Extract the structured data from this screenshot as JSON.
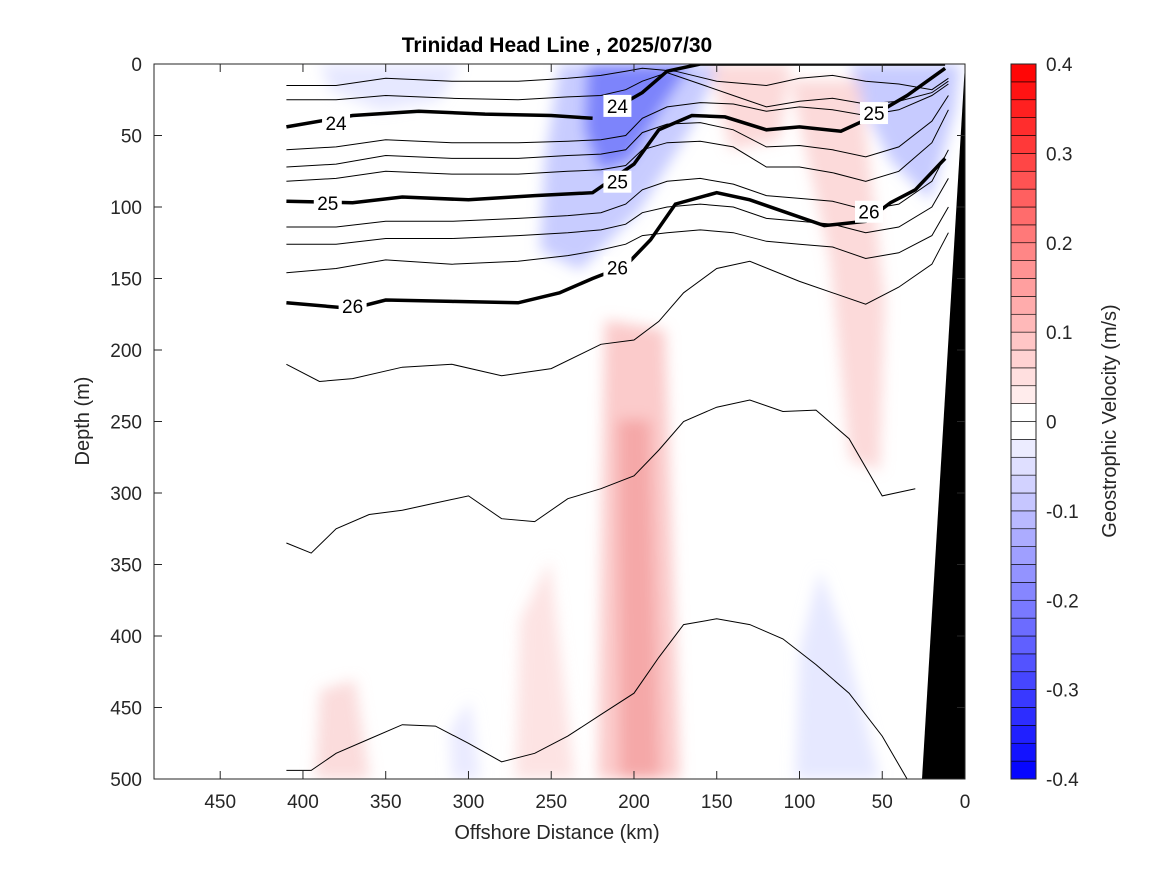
{
  "chart_data": {
    "type": "contour",
    "title": "Trinidad Head Line , 2025/07/30",
    "xlabel": "Offshore Distance (km)",
    "ylabel": "Depth (m)",
    "xlim": [
      490,
      0
    ],
    "ylim": [
      0,
      500
    ],
    "xticks": [
      "450",
      "400",
      "350",
      "300",
      "250",
      "200",
      "150",
      "100",
      "50",
      "0"
    ],
    "yticks": [
      "0",
      "50",
      "100",
      "150",
      "200",
      "250",
      "300",
      "350",
      "400",
      "450",
      "500"
    ],
    "colorbar": {
      "label": "Geostrophic Velocity (m/s)",
      "range": [
        -0.4,
        0.4
      ],
      "step": 0.02,
      "ticks": [
        "0.4",
        "0.3",
        "0.2",
        "0.1",
        "0",
        "-0.1",
        "-0.2",
        "-0.3",
        "-0.4"
      ],
      "positive_color": "#ff0000",
      "negative_color": "#0000ff"
    },
    "contour_labels": [
      {
        "text": "24",
        "x": 380,
        "y": 42
      },
      {
        "text": "24",
        "x": 210,
        "y": 30
      },
      {
        "text": "25",
        "x": 385,
        "y": 98
      },
      {
        "text": "25",
        "x": 210,
        "y": 83
      },
      {
        "text": "25",
        "x": 55,
        "y": 35
      },
      {
        "text": "26",
        "x": 370,
        "y": 170
      },
      {
        "text": "26",
        "x": 210,
        "y": 143
      },
      {
        "text": "26",
        "x": 58,
        "y": 104
      }
    ],
    "isopycnals_thick": [
      {
        "value": "24",
        "x": [
          410,
          370,
          330,
          290,
          250,
          225
        ],
        "y": [
          44,
          36,
          33,
          35,
          36,
          38
        ]
      },
      {
        "value": "24",
        "x": [
          210,
          195,
          180,
          160,
          130,
          100,
          80,
          55,
          35,
          12
        ],
        "y": [
          30,
          20,
          5,
          0,
          0,
          0,
          0,
          0,
          0,
          0
        ]
      },
      {
        "value": "25",
        "x": [
          410,
          370,
          340,
          300,
          260,
          225,
          200,
          185,
          165,
          145,
          120,
          100,
          75,
          60,
          35,
          12
        ],
        "y": [
          96,
          97,
          93,
          95,
          92,
          90,
          70,
          46,
          36,
          37,
          46,
          44,
          47,
          39,
          22,
          3
        ]
      },
      {
        "value": "26",
        "x": [
          410,
          370,
          350,
          310,
          270,
          245,
          225,
          205,
          190,
          175,
          150,
          130,
          110,
          85,
          60,
          45,
          30,
          12
        ],
        "y": [
          167,
          171,
          165,
          166,
          167,
          160,
          150,
          141,
          123,
          98,
          90,
          95,
          103,
          113,
          110,
          97,
          88,
          66
        ]
      }
    ],
    "isopycnals_thin": [
      {
        "x": [
          410,
          380,
          350,
          310,
          270,
          240,
          220,
          205,
          195,
          175,
          150,
          120,
          100,
          80,
          60,
          40,
          20,
          10
        ],
        "y": [
          15,
          15,
          10,
          12,
          12,
          10,
          8,
          5,
          3,
          5,
          12,
          15,
          10,
          8,
          12,
          14,
          18,
          10
        ]
      },
      {
        "x": [
          410,
          380,
          350,
          310,
          270,
          240,
          220,
          205,
          195,
          180,
          160,
          140,
          120,
          100,
          80,
          60,
          40,
          20,
          10
        ],
        "y": [
          25,
          25,
          22,
          24,
          25,
          23,
          22,
          18,
          12,
          6,
          14,
          22,
          30,
          26,
          24,
          28,
          26,
          20,
          12
        ]
      },
      {
        "x": [
          410,
          380,
          350,
          310,
          270,
          240,
          220,
          205,
          195,
          180,
          160,
          140,
          120,
          100,
          80,
          60,
          40,
          20,
          10
        ],
        "y": [
          60,
          58,
          53,
          55,
          55,
          54,
          53,
          50,
          38,
          30,
          27,
          28,
          33,
          30,
          32,
          36,
          32,
          22,
          14
        ]
      },
      {
        "x": [
          410,
          380,
          350,
          310,
          270,
          240,
          220,
          205,
          195,
          180,
          160,
          140,
          120,
          100,
          80,
          60,
          40,
          20,
          10
        ],
        "y": [
          72,
          70,
          64,
          66,
          66,
          64,
          63,
          60,
          48,
          42,
          41,
          46,
          58,
          57,
          60,
          65,
          58,
          40,
          22
        ]
      },
      {
        "x": [
          410,
          380,
          350,
          310,
          270,
          240,
          220,
          205,
          195,
          180,
          160,
          140,
          120,
          100,
          80,
          60,
          40,
          20,
          10
        ],
        "y": [
          82,
          80,
          75,
          77,
          77,
          75,
          74,
          71,
          60,
          55,
          54,
          58,
          72,
          72,
          76,
          82,
          75,
          55,
          32
        ]
      },
      {
        "x": [
          410,
          380,
          350,
          310,
          270,
          240,
          220,
          205,
          195,
          180,
          160,
          140,
          120,
          100,
          80,
          60,
          40,
          20,
          10
        ],
        "y": [
          114,
          114,
          110,
          110,
          108,
          106,
          104,
          98,
          88,
          82,
          80,
          84,
          92,
          94,
          96,
          102,
          98,
          82,
          60
        ]
      },
      {
        "x": [
          410,
          380,
          350,
          310,
          270,
          240,
          220,
          205,
          195,
          180,
          160,
          140,
          120,
          100,
          80,
          60,
          40,
          20,
          10
        ],
        "y": [
          126,
          126,
          122,
          122,
          120,
          118,
          116,
          112,
          104,
          100,
          98,
          100,
          108,
          110,
          112,
          118,
          114,
          100,
          80
        ]
      },
      {
        "x": [
          410,
          380,
          350,
          310,
          270,
          240,
          220,
          205,
          195,
          180,
          160,
          140,
          120,
          100,
          80,
          60,
          40,
          20,
          10
        ],
        "y": [
          146,
          143,
          137,
          140,
          138,
          134,
          130,
          126,
          120,
          118,
          116,
          118,
          124,
          126,
          128,
          136,
          132,
          120,
          100
        ]
      },
      {
        "x": [
          410,
          390,
          370,
          340,
          310,
          280,
          250,
          220,
          200,
          185,
          170,
          150,
          130,
          100,
          80,
          60,
          40,
          20,
          10
        ],
        "y": [
          210,
          222,
          220,
          212,
          210,
          218,
          213,
          196,
          193,
          180,
          160,
          143,
          138,
          152,
          160,
          168,
          156,
          140,
          118
        ]
      },
      {
        "x": [
          410,
          395,
          380,
          360,
          340,
          320,
          300,
          280,
          260,
          240,
          220,
          200,
          185,
          170,
          150,
          130,
          110,
          90,
          70,
          50,
          30
        ],
        "y": [
          335,
          342,
          325,
          315,
          312,
          307,
          302,
          318,
          320,
          304,
          297,
          288,
          270,
          250,
          240,
          235,
          243,
          242,
          262,
          302,
          297
        ]
      },
      {
        "x": [
          410,
          395,
          380,
          360,
          340,
          320,
          300,
          280,
          260,
          240,
          220,
          200,
          185,
          170,
          150,
          130,
          110,
          90,
          70,
          50,
          35
        ],
        "y": [
          494,
          494,
          482,
          472,
          462,
          463,
          475,
          488,
          482,
          470,
          455,
          440,
          415,
          392,
          388,
          392,
          402,
          420,
          440,
          470,
          500
        ]
      }
    ]
  }
}
